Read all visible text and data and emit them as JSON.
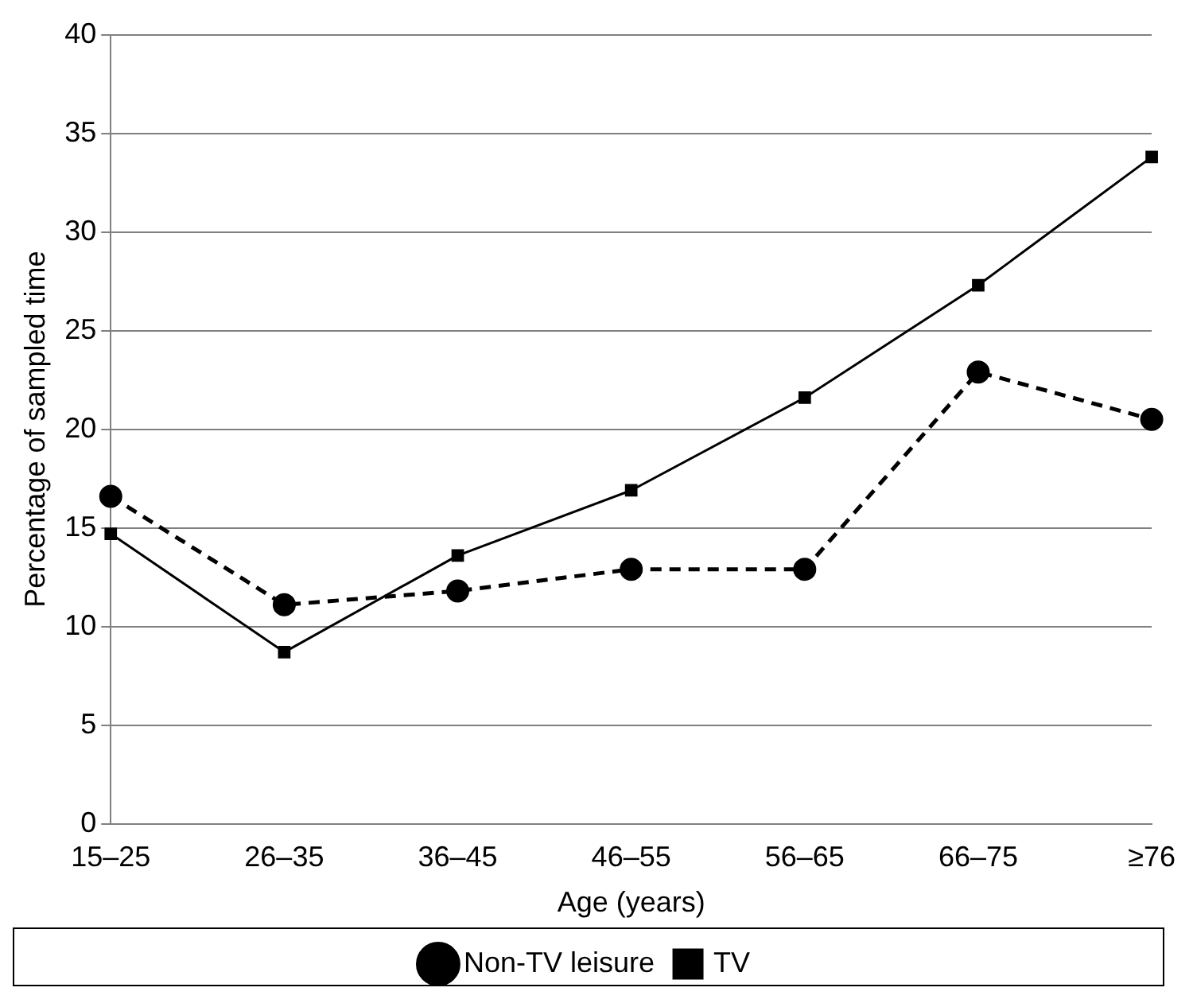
{
  "chart_data": {
    "type": "line",
    "xlabel": "Age (years)",
    "ylabel": "Percentage of sampled time",
    "categories": [
      "15–25",
      "26–35",
      "36–45",
      "46–55",
      "56–65",
      "66–75",
      "≥76"
    ],
    "series": [
      {
        "name": "Non-TV leisure",
        "color": "#000000",
        "marker": "circle",
        "line_style": "dashed",
        "values": [
          16.6,
          11.1,
          11.8,
          12.9,
          12.9,
          22.9,
          20.5
        ]
      },
      {
        "name": "TV",
        "color": "#000000",
        "marker": "square",
        "line_style": "solid",
        "values": [
          14.7,
          8.7,
          13.6,
          16.9,
          21.6,
          27.3,
          33.8
        ]
      }
    ],
    "ylim": [
      0,
      40
    ],
    "yticks": [
      0,
      5,
      10,
      15,
      20,
      25,
      30,
      35,
      40
    ],
    "grid": "y",
    "legend": "bottom"
  }
}
